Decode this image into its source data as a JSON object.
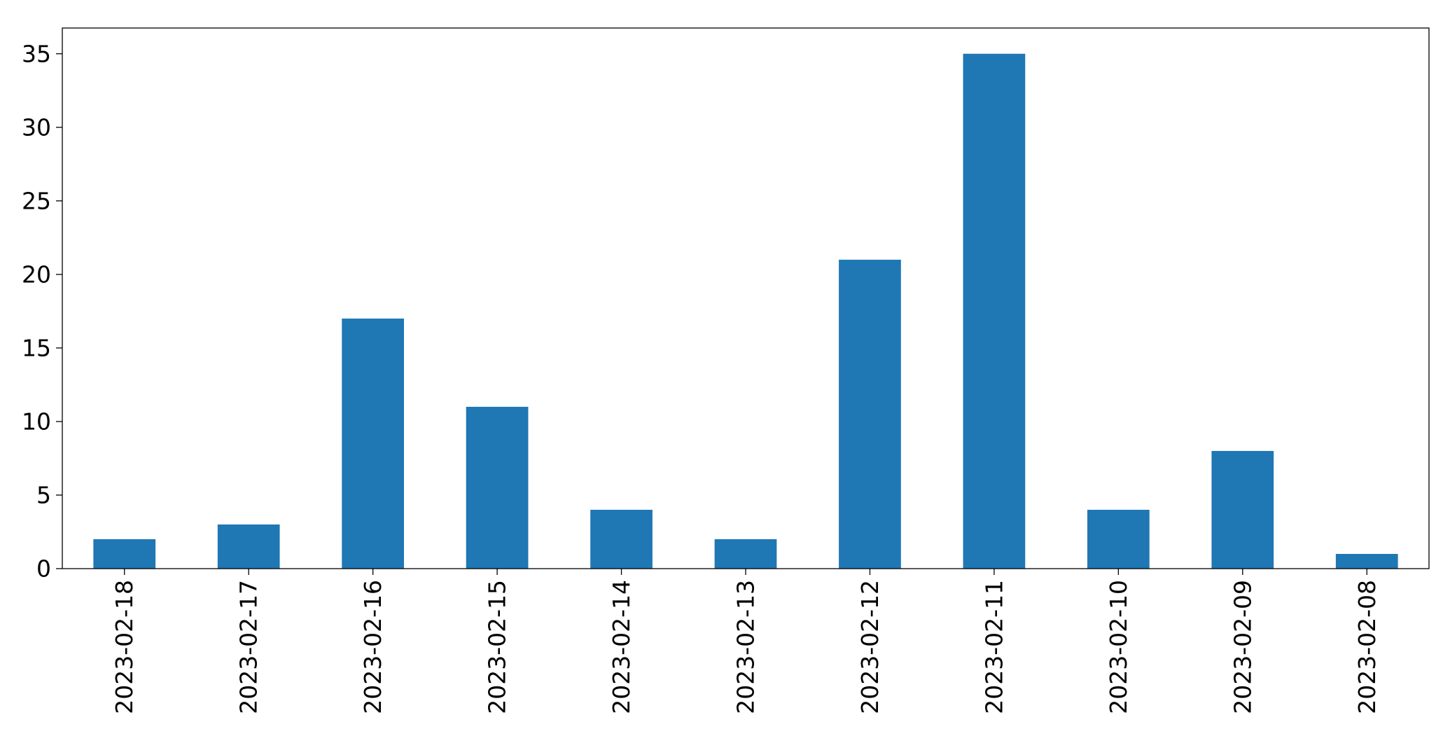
{
  "chart_data": {
    "type": "bar",
    "title": "",
    "xlabel": "",
    "ylabel": "",
    "categories": [
      "2023-02-18",
      "2023-02-17",
      "2023-02-16",
      "2023-02-15",
      "2023-02-14",
      "2023-02-13",
      "2023-02-12",
      "2023-02-11",
      "2023-02-10",
      "2023-02-09",
      "2023-02-08"
    ],
    "values": [
      2,
      3,
      17,
      11,
      4,
      2,
      21,
      35,
      4,
      8,
      1
    ],
    "ylim": [
      0,
      36.75
    ],
    "yticks": [
      0,
      5,
      10,
      15,
      20,
      25,
      30,
      35
    ],
    "grid": false,
    "legend": "none",
    "bar_color": "#1f77b4",
    "xtick_rotation": "vertical"
  }
}
